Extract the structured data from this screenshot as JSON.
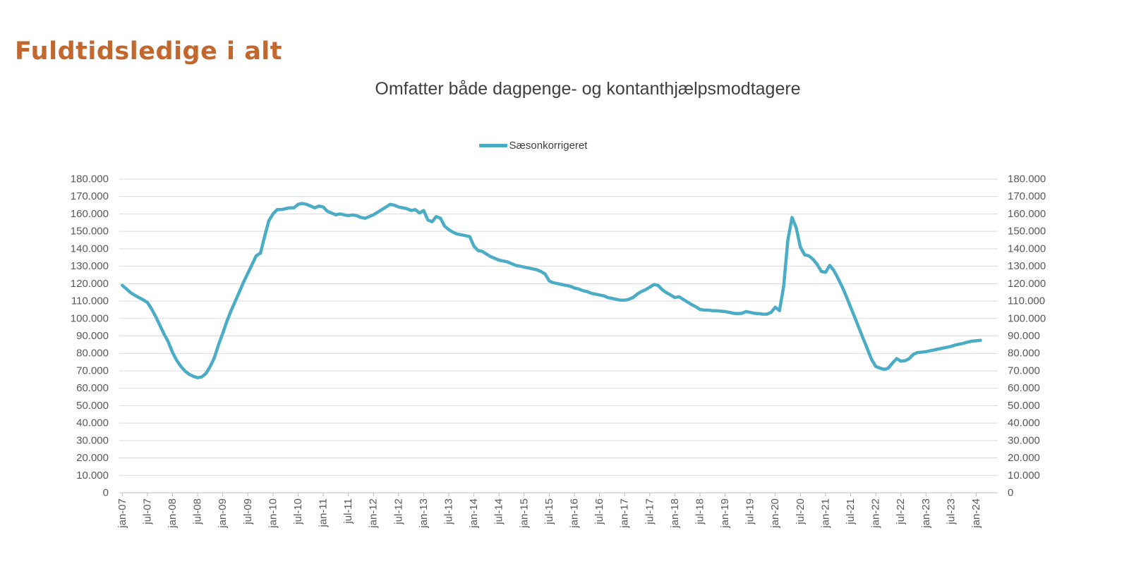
{
  "page": {
    "title": "Fuldtidsledige i alt"
  },
  "colors": {
    "title": "#C2682E",
    "subtitle": "#3F3F3F",
    "legend_text": "#404040",
    "series_line": "#4BACC6",
    "gridline": "#D9D9D9",
    "axis_line": "#BFBFBF",
    "axis_text": "#595959"
  },
  "chart_data": {
    "type": "line",
    "title": "Omfatter både dagpenge- og kontanthjælpsmodtagere",
    "legend": [
      "Sæsonkorrigeret"
    ],
    "legend_position": "top-center",
    "grid": true,
    "ylim": [
      0,
      180000
    ],
    "y_tick_step": 10000,
    "y_tick_labels": [
      "0",
      "10.000",
      "20.000",
      "30.000",
      "40.000",
      "50.000",
      "60.000",
      "70.000",
      "80.000",
      "90.000",
      "100.000",
      "110.000",
      "120.000",
      "130.000",
      "140.000",
      "150.000",
      "160.000",
      "170.000",
      "180.000"
    ],
    "y_axis_sides": "both",
    "x_frequency": "monthly",
    "x_ticks_every_n_months": 6,
    "x_tick_labels": [
      "jan-07",
      "jul-07",
      "jan-08",
      "jul-08",
      "jan-09",
      "jul-09",
      "jan-10",
      "jul-10",
      "jan-11",
      "jul-11",
      "jan-12",
      "jul-12",
      "jan-13",
      "jul-13",
      "jan-14",
      "jul-14",
      "jan-15",
      "jul-15",
      "jan-16",
      "jul-16",
      "jan-17",
      "jul-17",
      "jan-18",
      "jul-18",
      "jan-19",
      "jul-19",
      "jan-20",
      "jul-20",
      "jan-21",
      "jul-21",
      "jan-22",
      "jul-22",
      "jan-23",
      "jul-23",
      "jan-24"
    ],
    "series": [
      {
        "name": "Sæsonkorrigeret",
        "color": "#4BACC6",
        "start": "jan-07",
        "values": [
          119000,
          117000,
          114800,
          113300,
          112000,
          110700,
          109200,
          105500,
          101000,
          96000,
          91000,
          86500,
          80500,
          76000,
          72500,
          69800,
          68000,
          66800,
          66000,
          66500,
          68500,
          72500,
          77500,
          85000,
          91500,
          98500,
          104500,
          110000,
          115500,
          121000,
          126000,
          131000,
          136000,
          137500,
          147000,
          156000,
          160000,
          162500,
          162500,
          163000,
          163500,
          163500,
          165500,
          166000,
          165500,
          164500,
          163500,
          164500,
          164000,
          161500,
          160500,
          159500,
          160000,
          159500,
          159000,
          159500,
          159000,
          158000,
          157500,
          158500,
          159500,
          161000,
          162500,
          164000,
          165500,
          165000,
          164000,
          163500,
          163000,
          162000,
          162500,
          160500,
          162000,
          156500,
          155500,
          158500,
          157500,
          153000,
          151000,
          149500,
          148500,
          148000,
          147500,
          147000,
          141500,
          139000,
          138500,
          137000,
          135500,
          134500,
          133500,
          133000,
          132500,
          131500,
          130500,
          130000,
          129500,
          129000,
          128500,
          128000,
          127000,
          125500,
          121500,
          120500,
          120000,
          119500,
          119000,
          118500,
          117500,
          117000,
          116000,
          115500,
          114500,
          114000,
          113500,
          113000,
          112000,
          111500,
          111000,
          110500,
          110500,
          111000,
          112000,
          114000,
          115500,
          116500,
          118000,
          119500,
          119000,
          116500,
          114800,
          113500,
          112000,
          112500,
          111000,
          109500,
          108000,
          106800,
          105200,
          104800,
          104800,
          104500,
          104500,
          104200,
          104000,
          103500,
          103000,
          102800,
          103000,
          104000,
          103500,
          103000,
          102800,
          102500,
          102500,
          103500,
          106500,
          104500,
          118500,
          145000,
          158000,
          152000,
          141000,
          136500,
          136000,
          134000,
          131000,
          127000,
          126500,
          130500,
          127500,
          123000,
          118000,
          112500,
          106500,
          100500,
          94500,
          88500,
          82500,
          76500,
          72500,
          71500,
          70800,
          71500,
          74500,
          77000,
          75500,
          75800,
          77000,
          79500,
          80500,
          80700,
          81000,
          81500,
          82000,
          82500,
          83000,
          83500,
          84000,
          84800,
          85300,
          85800,
          86500,
          87000,
          87200,
          87500
        ]
      }
    ]
  }
}
